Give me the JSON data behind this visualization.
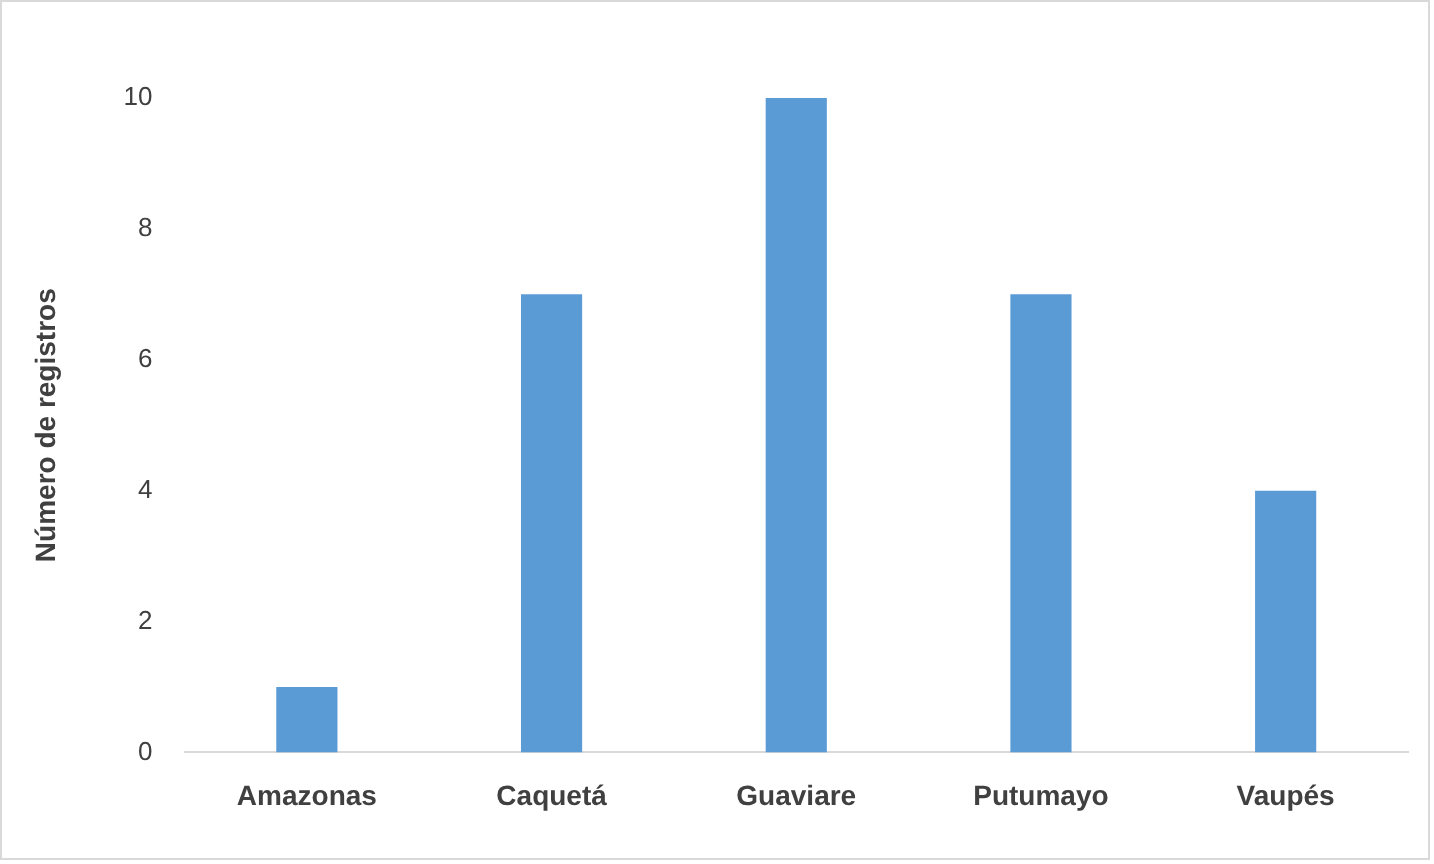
{
  "chart_data": {
    "type": "bar",
    "ylabel": "Número de registros",
    "categories": [
      "Amazonas",
      "Caquetá",
      "Guaviare",
      "Putumayo",
      "Vaupés"
    ],
    "values": [
      1,
      7,
      10,
      7,
      4
    ],
    "color": "#5b9bd5",
    "ylim": [
      0,
      10
    ],
    "yticks": [
      0,
      2,
      4,
      6,
      8,
      10
    ],
    "grid": false,
    "legend": false
  }
}
